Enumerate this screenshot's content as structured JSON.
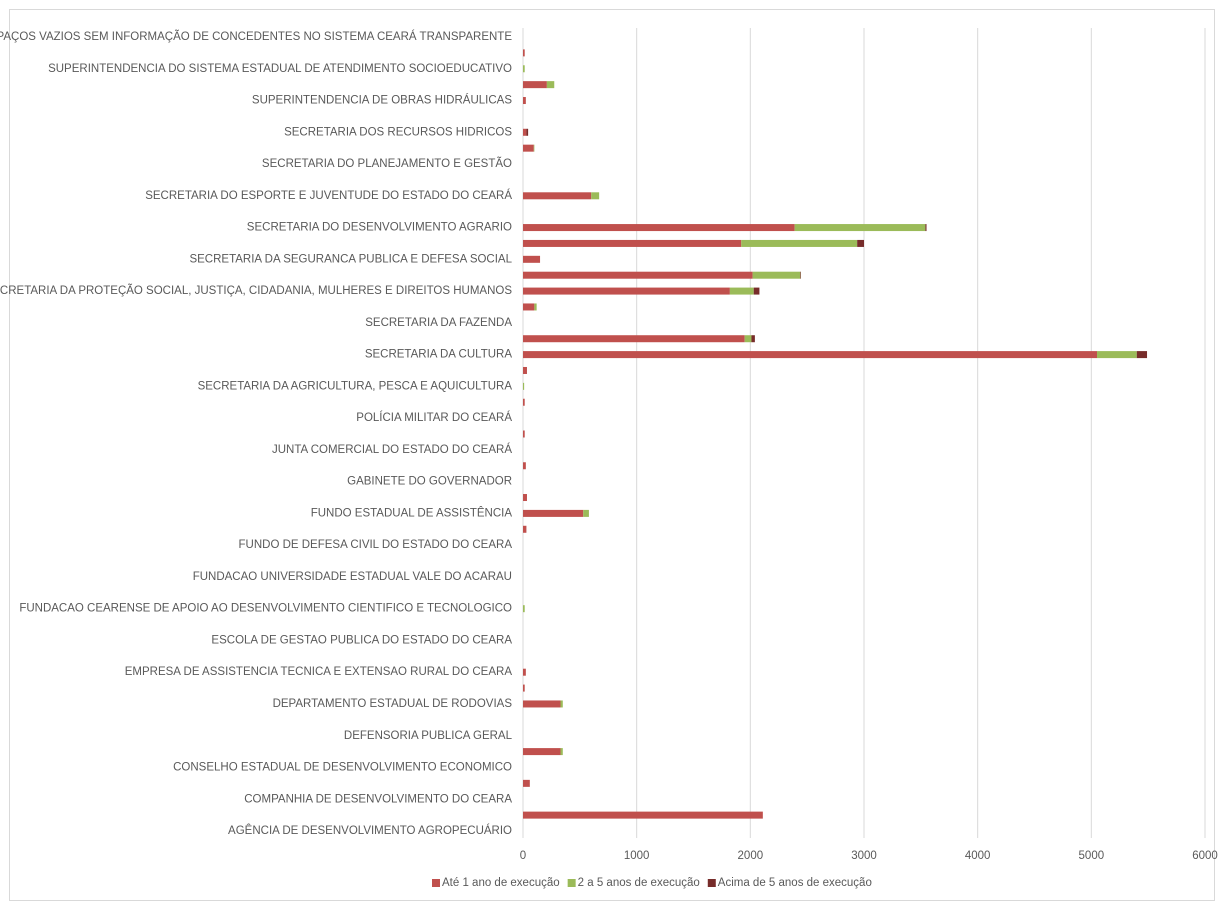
{
  "chart_data": {
    "type": "stacked_bar_horizontal",
    "categories": [
      "ESPAÇOS VAZIOS SEM INFORMAÇÃO DE CONCEDENTES NO SISTEMA CEARÁ TRANSPARENTE",
      null,
      "SUPERINTENDENCIA DO SISTEMA ESTADUAL DE ATENDIMENTO SOCIOEDUCATIVO",
      null,
      "SUPERINTENDENCIA DE OBRAS HIDRÁULICAS",
      null,
      "SECRETARIA DOS RECURSOS HIDRICOS",
      null,
      "SECRETARIA DO PLANEJAMENTO E GESTÃO",
      null,
      "SECRETARIA DO ESPORTE E JUVENTUDE DO ESTADO DO CEARÁ",
      null,
      "SECRETARIA DO DESENVOLVIMENTO AGRARIO",
      null,
      "SECRETARIA DA SEGURANCA PUBLICA E DEFESA SOCIAL",
      null,
      "SECRETARIA DA PROTEÇÃO SOCIAL, JUSTIÇA, CIDADANIA, MULHERES E DIREITOS HUMANOS",
      null,
      "SECRETARIA DA FAZENDA",
      null,
      "SECRETARIA DA CULTURA",
      null,
      "SECRETARIA DA AGRICULTURA,  PESCA E AQUICULTURA",
      null,
      "POLÍCIA MILITAR DO CEARÁ",
      null,
      "JUNTA COMERCIAL DO ESTADO DO CEARÁ",
      null,
      "GABINETE DO GOVERNADOR",
      null,
      "FUNDO ESTADUAL DE ASSISTÊNCIA",
      null,
      "FUNDO DE DEFESA CIVIL DO ESTADO DO CEARA",
      null,
      "FUNDACAO UNIVERSIDADE ESTADUAL VALE DO ACARAU",
      null,
      "FUNDACAO CEARENSE DE APOIO AO DESENVOLVIMENTO CIENTIFICO E TECNOLOGICO",
      null,
      "ESCOLA DE GESTAO PUBLICA DO ESTADO DO CEARA",
      null,
      "EMPRESA DE ASSISTENCIA TECNICA E EXTENSAO RURAL DO CEARA",
      null,
      "DEPARTAMENTO ESTADUAL DE RODOVIAS",
      null,
      "DEFENSORIA PUBLICA GERAL",
      null,
      "CONSELHO ESTADUAL DE DESENVOLVIMENTO ECONOMICO",
      null,
      "COMPANHIA DE DESENVOLVIMENTO DO CEARA",
      null,
      "AGÊNCIA DE DESENVOLVIMENTO AGROPECUÁRIO"
    ],
    "series": [
      {
        "name": "Até 1 ano de execução",
        "color": "#c0504d",
        "values": [
          0,
          15,
          0,
          210,
          25,
          0,
          30,
          95,
          0,
          0,
          600,
          0,
          2390,
          1920,
          150,
          2020,
          1820,
          100,
          0,
          1950,
          5050,
          35,
          0,
          15,
          0,
          15,
          0,
          25,
          0,
          35,
          530,
          30,
          0,
          0,
          0,
          0,
          0,
          0,
          0,
          0,
          25,
          15,
          330,
          0,
          0,
          330,
          0,
          60,
          0,
          2110,
          0
        ]
      },
      {
        "name": "2 a 5 anos de execução",
        "color": "#9bbb59",
        "values": [
          0,
          0,
          15,
          65,
          0,
          0,
          0,
          5,
          0,
          0,
          70,
          0,
          1150,
          1020,
          0,
          420,
          210,
          20,
          0,
          60,
          350,
          0,
          10,
          0,
          0,
          0,
          0,
          0,
          0,
          0,
          50,
          0,
          0,
          0,
          0,
          0,
          15,
          0,
          0,
          0,
          0,
          0,
          20,
          0,
          0,
          20,
          0,
          0,
          0,
          0,
          0
        ]
      },
      {
        "name": "Acima de 5 anos de execução",
        "color": "#772c2a",
        "values": [
          0,
          0,
          0,
          0,
          0,
          0,
          15,
          0,
          0,
          0,
          0,
          0,
          10,
          60,
          0,
          5,
          50,
          0,
          0,
          30,
          90,
          0,
          0,
          0,
          0,
          0,
          0,
          0,
          0,
          0,
          0,
          0,
          0,
          0,
          0,
          0,
          0,
          0,
          0,
          0,
          0,
          0,
          0,
          0,
          0,
          0,
          0,
          0,
          0,
          0,
          0
        ]
      }
    ],
    "xlim": [
      0,
      6000
    ],
    "xticks": [
      0,
      1000,
      2000,
      3000,
      4000,
      5000,
      6000
    ],
    "grid": true,
    "legend": "bottom"
  }
}
